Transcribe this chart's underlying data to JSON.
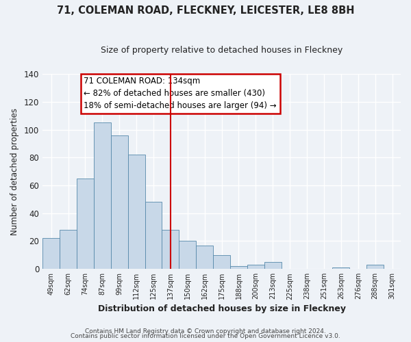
{
  "title": "71, COLEMAN ROAD, FLECKNEY, LEICESTER, LE8 8BH",
  "subtitle": "Size of property relative to detached houses in Fleckney",
  "xlabel": "Distribution of detached houses by size in Fleckney",
  "ylabel": "Number of detached properties",
  "bar_color": "#c8d8e8",
  "bar_edge_color": "#5588aa",
  "background_color": "#eef2f7",
  "plot_bg_color": "#eef2f7",
  "grid_color": "#ffffff",
  "categories": [
    "49sqm",
    "62sqm",
    "74sqm",
    "87sqm",
    "99sqm",
    "112sqm",
    "125sqm",
    "137sqm",
    "150sqm",
    "162sqm",
    "175sqm",
    "188sqm",
    "200sqm",
    "213sqm",
    "225sqm",
    "238sqm",
    "251sqm",
    "263sqm",
    "276sqm",
    "288sqm",
    "301sqm"
  ],
  "values": [
    22,
    28,
    65,
    105,
    96,
    82,
    48,
    28,
    20,
    17,
    10,
    2,
    3,
    5,
    0,
    0,
    0,
    1,
    0,
    3,
    0
  ],
  "vline_color": "#cc0000",
  "annotation_title": "71 COLEMAN ROAD: 134sqm",
  "annotation_line1": "← 82% of detached houses are smaller (430)",
  "annotation_line2": "18% of semi-detached houses are larger (94) →",
  "annotation_box_color": "#ffffff",
  "annotation_box_edge": "#cc0000",
  "ylim": [
    0,
    140
  ],
  "yticks": [
    0,
    20,
    40,
    60,
    80,
    100,
    120,
    140
  ],
  "footer1": "Contains HM Land Registry data © Crown copyright and database right 2024.",
  "footer2": "Contains public sector information licensed under the Open Government Licence v3.0."
}
